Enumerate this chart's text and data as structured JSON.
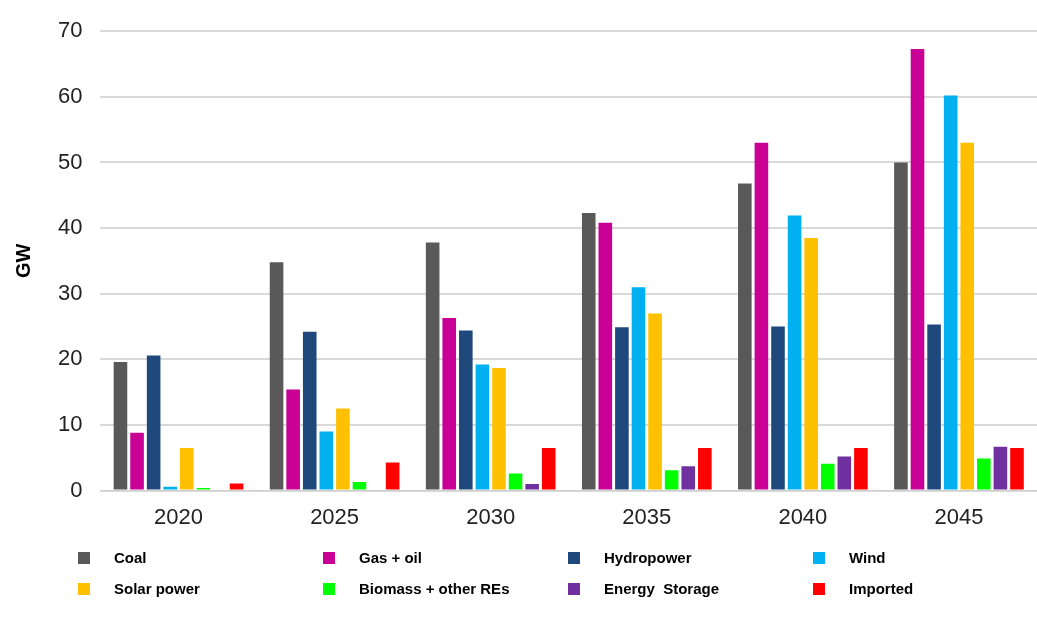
{
  "chart_data": {
    "type": "bar",
    "ylabel": "GW",
    "categories": [
      "2020",
      "2025",
      "2030",
      "2035",
      "2040",
      "2045"
    ],
    "series": [
      {
        "name": "Coal",
        "color": "#595959",
        "values": [
          19.6,
          34.8,
          37.8,
          42.3,
          46.8,
          50.0
        ]
      },
      {
        "name": "Gas + oil",
        "color": "#c90095",
        "values": [
          8.8,
          15.4,
          26.3,
          40.8,
          53.0,
          67.3
        ]
      },
      {
        "name": "Hydropower",
        "color": "#1f497d",
        "values": [
          20.6,
          24.2,
          24.4,
          24.9,
          25.0,
          25.3
        ]
      },
      {
        "name": "Wind",
        "color": "#00b0f0",
        "values": [
          0.6,
          9.0,
          19.2,
          31.0,
          41.9,
          60.2
        ]
      },
      {
        "name": "Solar power",
        "color": "#ffc000",
        "values": [
          6.5,
          12.5,
          18.7,
          27.0,
          38.5,
          53.0
        ]
      },
      {
        "name": "Biomass + other REs",
        "color": "#00ff00",
        "values": [
          0.4,
          1.3,
          2.6,
          3.1,
          4.1,
          4.9
        ]
      },
      {
        "name": "Energy  Storage",
        "color": "#7030a0",
        "values": [
          null,
          null,
          1.0,
          3.7,
          5.2,
          6.7
        ]
      },
      {
        "name": "Imported",
        "color": "#ff0000",
        "values": [
          1.1,
          4.3,
          6.5,
          6.5,
          6.5,
          6.5
        ]
      }
    ],
    "ylim": [
      0,
      70
    ],
    "yticks": [
      0,
      10,
      20,
      30,
      40,
      50,
      60,
      70
    ],
    "grid": "y",
    "legend": "bottom"
  }
}
